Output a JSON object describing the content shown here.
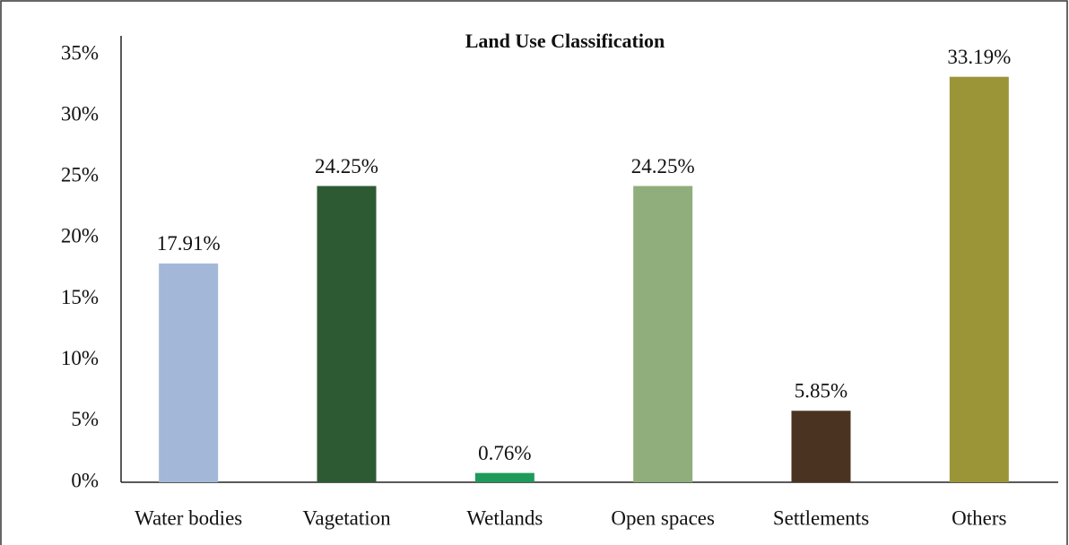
{
  "chart_data": {
    "type": "bar",
    "title": "Land Use Classification",
    "categories": [
      "Water bodies",
      "Vagetation",
      "Wetlands",
      "Open spaces",
      "Settlements",
      "Others"
    ],
    "values": [
      17.91,
      24.25,
      0.76,
      24.25,
      5.85,
      33.19
    ],
    "value_labels": [
      "17.91%",
      "24.25%",
      "0.76%",
      "24.25%",
      "5.85%",
      "33.19%"
    ],
    "colors": [
      "#a3b8d8",
      "#2e5a33",
      "#1f9a5a",
      "#8fae7b",
      "#4a3320",
      "#9b9538"
    ],
    "ylim": [
      0,
      35
    ],
    "yticks": [
      {
        "value": 0,
        "label": "0%"
      },
      {
        "value": 5,
        "label": "5%"
      },
      {
        "value": 10,
        "label": "10%"
      },
      {
        "value": 15,
        "label": "15%"
      },
      {
        "value": 20,
        "label": "20%"
      },
      {
        "value": 25,
        "label": "25%"
      },
      {
        "value": 30,
        "label": "30%"
      },
      {
        "value": 35,
        "label": "35%"
      }
    ],
    "grid": false
  }
}
